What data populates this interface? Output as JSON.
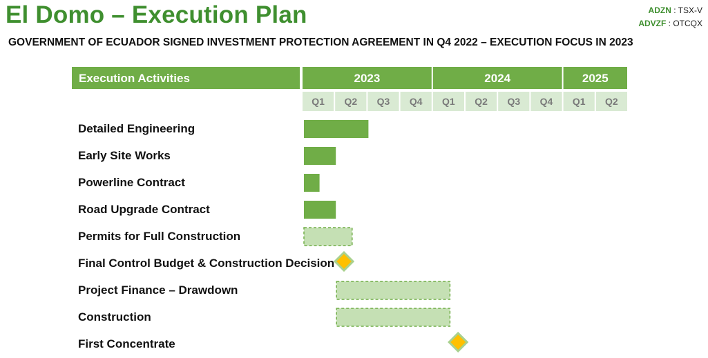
{
  "header": {
    "title": "El Domo – Execution Plan",
    "subtitle": "GOVERNMENT OF ECUADOR SIGNED INVESTMENT PROTECTION AGREEMENT IN Q4 2022 – EXECUTION FOCUS IN 2023",
    "tickers": [
      {
        "symbol": "ADZN",
        "sep": " : ",
        "exchange": "TSX-V"
      },
      {
        "symbol": "ADVZF",
        "sep": " : ",
        "exchange": "OTCQX"
      }
    ]
  },
  "colors": {
    "header_green": "#70ad47",
    "bar_solid": "#70ad47",
    "bar_planned": "#c5e0b4",
    "bar_planned_border": "#70ad47",
    "quarter_cell": "#d9ead3",
    "milestone_fill": "#ffc000",
    "milestone_border": "#a9d18e"
  },
  "chart_data": {
    "type": "gantt",
    "activities_header": "Execution Activities",
    "years": [
      {
        "label": "2023",
        "quarters": 4
      },
      {
        "label": "2024",
        "quarters": 4
      },
      {
        "label": "2025",
        "quarters": 2
      }
    ],
    "quarters": [
      "Q1",
      "Q2",
      "Q3",
      "Q4",
      "Q1",
      "Q2",
      "Q3",
      "Q4",
      "Q1",
      "Q2"
    ],
    "tasks": [
      {
        "name": "Detailed Engineering",
        "kind": "solid",
        "start": 0,
        "end": 2
      },
      {
        "name": "Early Site Works",
        "kind": "solid",
        "start": 0,
        "end": 1
      },
      {
        "name": "Powerline Contract",
        "kind": "solid",
        "start": 0,
        "end": 0.5
      },
      {
        "name": "Road Upgrade Contract",
        "kind": "solid",
        "start": 0,
        "end": 1
      },
      {
        "name": "Permits for Full Construction",
        "kind": "planned",
        "start": 0,
        "end": 1.5
      },
      {
        "name": "Final Control Budget & Construction Decision",
        "kind": "milestone",
        "at": 1.25
      },
      {
        "name": "Project Finance – Drawdown",
        "kind": "planned",
        "start": 1,
        "end": 4.5
      },
      {
        "name": "Construction",
        "kind": "planned",
        "start": 1,
        "end": 4.5
      },
      {
        "name": "First Concentrate",
        "kind": "milestone",
        "at": 4.75
      }
    ]
  }
}
